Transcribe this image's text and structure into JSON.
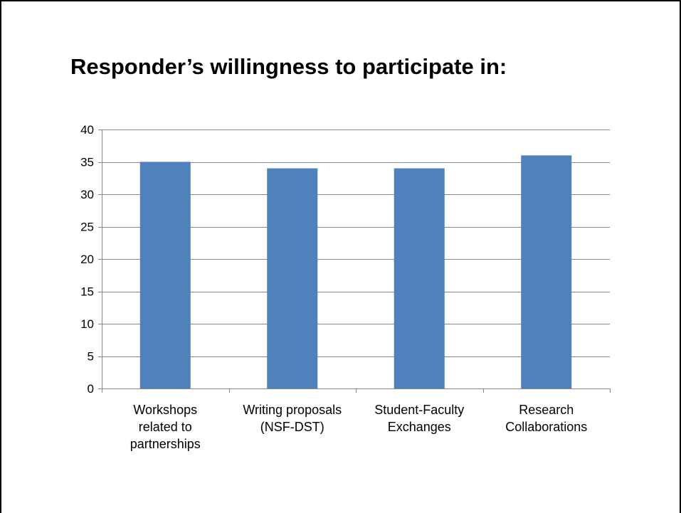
{
  "slide": {
    "title": "Responder’s willingness to participate in:"
  },
  "chart_data": {
    "type": "bar",
    "categories": [
      [
        "Workshops",
        "related to",
        "partnerships"
      ],
      [
        "Writing proposals",
        "(NSF-DST)"
      ],
      [
        "Student-Faculty",
        "Exchanges"
      ],
      [
        "Research",
        "Collaborations"
      ]
    ],
    "values": [
      35,
      34,
      34,
      36
    ],
    "ylim": [
      0,
      40
    ],
    "y_ticks": [
      0,
      5,
      10,
      15,
      20,
      25,
      30,
      35,
      40
    ],
    "grid": true,
    "legend": "none",
    "bar_color": "#4F81BD",
    "grid_color": "#878787"
  }
}
